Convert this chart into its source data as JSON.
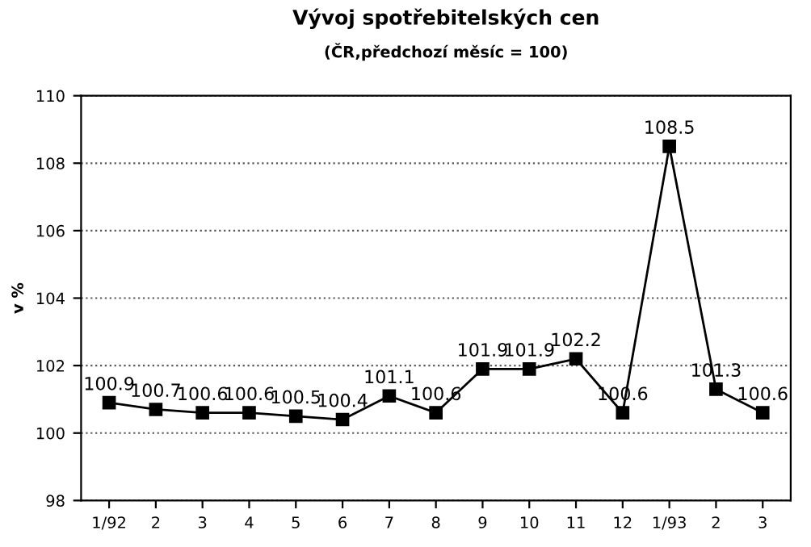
{
  "chart_data": {
    "type": "line",
    "title": "Vývoj spotřebitelských cen",
    "subtitle": "(ČR,předchozí měsíc = 100)",
    "ylabel": "v %",
    "categories": [
      "1/92",
      "2",
      "3",
      "4",
      "5",
      "6",
      "7",
      "8",
      "9",
      "10",
      "11",
      "12",
      "1/93",
      "2",
      "3"
    ],
    "series": [
      {
        "color": "#000000",
        "values": [
          100.9,
          100.7,
          100.6,
          100.6,
          100.5,
          100.4,
          101.1,
          100.6,
          101.9,
          101.9,
          102.2,
          100.6,
          108.5,
          101.3,
          100.6
        ]
      }
    ],
    "ylim": [
      98,
      110
    ],
    "yticks": [
      98,
      100,
      102,
      104,
      106,
      108,
      110
    ],
    "grid": "y",
    "marker": "square",
    "line_style": "solid",
    "data_labels": true
  }
}
